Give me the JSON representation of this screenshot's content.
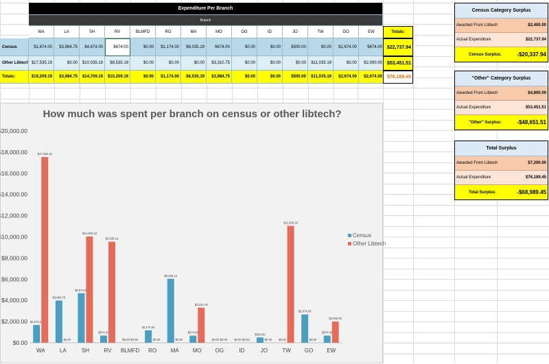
{
  "main_table": {
    "title": "Expenditure Per Branch",
    "subtitle": "Branch",
    "branches": [
      "WA",
      "LA",
      "SH",
      "RV",
      "BLMFD",
      "RO",
      "MA",
      "MO",
      "OG",
      "ID",
      "JO",
      "TW",
      "GO",
      "EW"
    ],
    "totals_label": "Totals:",
    "rows": [
      {
        "label": "Census",
        "values": [
          "$1,674.00",
          "$3,984.75",
          "$4,674.00",
          "$674.00",
          "$0.00",
          "$1,174.00",
          "$6,035.19",
          "$674.00",
          "$0.00",
          "$0.00",
          "$500.00",
          "$0.00",
          "$2,674.00",
          "$674.00"
        ],
        "total": "$22,737.94"
      },
      {
        "label": "Other Libtech",
        "values": [
          "$17,535.19",
          "$0.00",
          "$10,035.19",
          "$9,535.19",
          "$0.00",
          "$0.00",
          "$0.00",
          "$3,310.75",
          "$0.00",
          "$0.00",
          "$0.00",
          "$11,035.19",
          "$0.00",
          "$2,000.00"
        ],
        "total": "$53,451.51"
      },
      {
        "label": "Totals:",
        "values": [
          "$19,209.19",
          "$3,984.75",
          "$14,709.19",
          "$10,209.19",
          "$0.00",
          "$1,174.00",
          "$6,035.19",
          "$3,984.75",
          "$0.00",
          "$0.00",
          "$500.00",
          "$11,035.19",
          "$2,674.00",
          "$2,674.00"
        ],
        "total": "$76,189.45"
      }
    ]
  },
  "side_panels": [
    {
      "title": "Census Category Surplus",
      "rows": [
        {
          "label": "Awarded From Libtech",
          "value": "$2,400.00"
        },
        {
          "label": "Actual Expenditure",
          "value": "$22,737.94"
        }
      ],
      "result_label": "Census Surplus:",
      "result_value": "-$20,337.94"
    },
    {
      "title": "\"Other\" Category Surplus",
      "rows": [
        {
          "label": "Awarded From Libtech",
          "value": "$4,800.00"
        },
        {
          "label": "Actual Expenditure",
          "value": "$53,451.51"
        }
      ],
      "result_label": "\"Other\" Surplus:",
      "result_value": "-$48,651.51"
    },
    {
      "title": "Total Surplus",
      "rows": [
        {
          "label": "Awarded From Libtech",
          "value": "$7,200.00"
        },
        {
          "label": "Actual Expenditure",
          "value": "$76,189.45"
        }
      ],
      "result_label": "Total Surplus:",
      "result_value": "-$68,989.45"
    }
  ],
  "colors": {
    "census": "#4a9fc0",
    "other": "#e46c5a",
    "yellow": "#ffff00",
    "chart_bg": "#f2f2f2"
  },
  "chart_data": {
    "type": "bar",
    "title": "How much was spent per branch on census or other libtech?",
    "categories": [
      "WA",
      "LA",
      "SH",
      "RV",
      "BLMFD",
      "RO",
      "MA",
      "MO",
      "OG",
      "ID",
      "JO",
      "TW",
      "GO",
      "EW"
    ],
    "series": [
      {
        "name": "Census",
        "values": [
          1674,
          3984.75,
          4674,
          674,
          0,
          1174,
          6035.19,
          674,
          0,
          0,
          500,
          0,
          2674,
          674
        ],
        "labels": [
          "$1,674.00",
          "$3,984.75",
          "$4,674.00",
          "$674.00",
          "$0.00",
          "$1,174.00",
          "$6,035.19",
          "$674.00",
          "$0.00",
          "$0.00",
          "$500.00",
          "$0.00",
          "$2,674.00",
          "$674.00"
        ]
      },
      {
        "name": "Other Libtech",
        "values": [
          17535.19,
          0,
          10035.19,
          9535.19,
          0,
          0,
          0,
          3310.75,
          0,
          0,
          0,
          11035.19,
          0,
          2000
        ],
        "labels": [
          "$17,535.19",
          "$0.00",
          "$10,035.19",
          "$9,535.19",
          "$0.00",
          "$0.00",
          "$0.00",
          "$3,310.75",
          "$0.00",
          "$0.00",
          "$0.00",
          "$11,035.19",
          "$0.00",
          "$2,000.00"
        ]
      }
    ],
    "ylim": [
      0,
      20000
    ],
    "yticks": [
      "$0.00",
      "$2,000.00",
      "$4,000.00",
      "$6,000.00",
      "$8,000.00",
      "$10,000.00",
      "$12,000.00",
      "$14,000.00",
      "$16,000.00",
      "$18,000.00",
      "$20,000.00"
    ],
    "xlabel": "",
    "ylabel": "",
    "legend_position": "right",
    "grid": false
  }
}
